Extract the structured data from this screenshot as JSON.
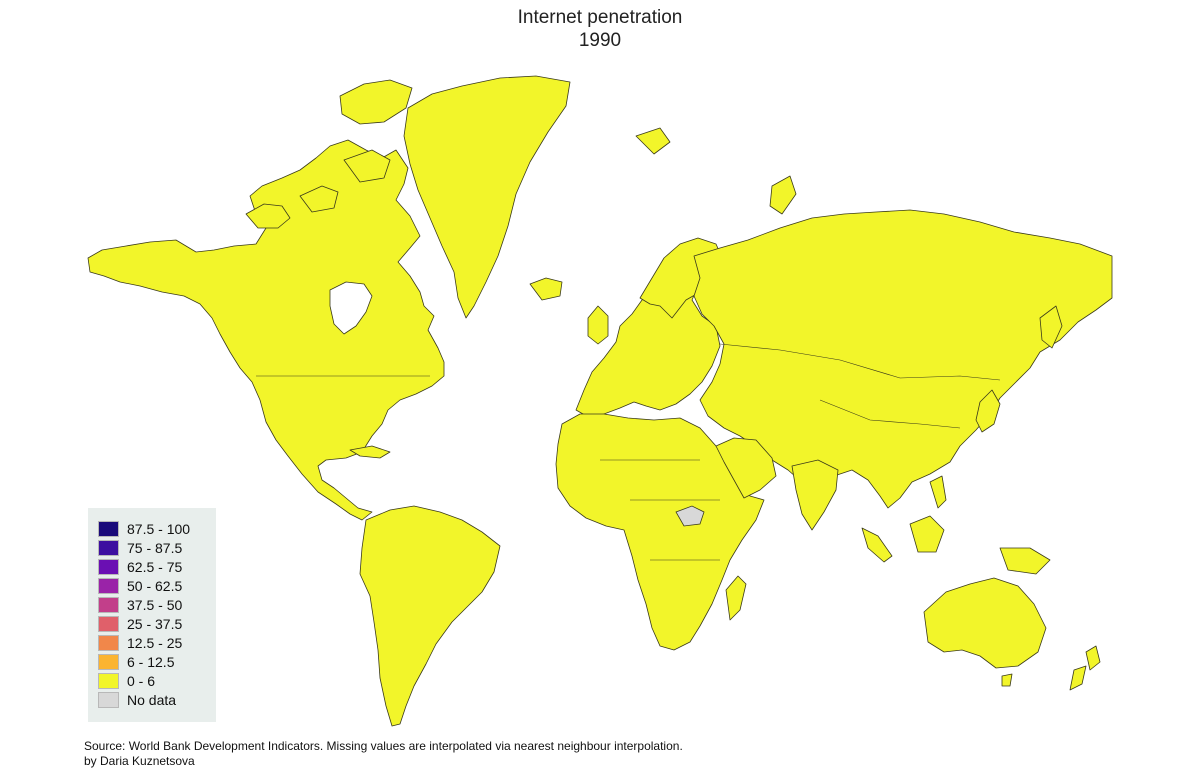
{
  "title": "Internet penetration",
  "subtitle": "1990",
  "map": {
    "region": "world",
    "projection": "mercator",
    "fill_color": "#f2f52a",
    "border_color": "#3a3a1a",
    "no_data_color": "#d8d8d8",
    "no_data_regions": [
      "South Sudan"
    ]
  },
  "legend": {
    "items": [
      {
        "label": "87.5 - 100",
        "color": "#1a0a7a"
      },
      {
        "label": "75 - 87.5",
        "color": "#3d0fa0"
      },
      {
        "label": "62.5 - 75",
        "color": "#6a0fb3"
      },
      {
        "label": "50 - 62.5",
        "color": "#9a23a8"
      },
      {
        "label": "37.5 - 50",
        "color": "#c23f8a"
      },
      {
        "label": "25 - 37.5",
        "color": "#e0606a"
      },
      {
        "label": "12.5 - 25",
        "color": "#f1874a"
      },
      {
        "label": "6 - 12.5",
        "color": "#fbb431"
      },
      {
        "label": "0 - 6",
        "color": "#f2f52a"
      },
      {
        "label": "No data",
        "color": "#d8d8d8"
      }
    ]
  },
  "source": "Source: World Bank Development Indicators. Missing values are interpolated via nearest neighbour interpolation.",
  "author": "by Daria Kuznetsova"
}
